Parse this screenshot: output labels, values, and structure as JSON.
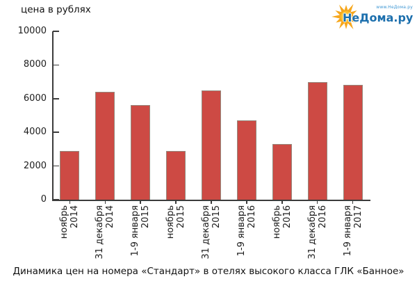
{
  "logo": {
    "wordmark": "НеДома.ру",
    "url_text": "www.НеДома.ру",
    "sun_color": "#f6a71d",
    "sun_core_color": "#fdc02f",
    "text_color": "#1c6fad"
  },
  "chart_data": {
    "type": "bar",
    "title": "Динамика цен на номера «Стандарт» в отелях высокого класса ГЛК «Банное»",
    "ylabel": "цена в рублях",
    "xlabel": "",
    "categories": [
      "ноябрь 2014",
      "31 декабря 2014",
      "1-9 января 2015",
      "ноябрь 2015",
      "31 декабря 2015",
      "1-9 января 2016",
      "ноябрь 2016",
      "31 декабря 2016",
      "1-9 января 2017"
    ],
    "category_lines": [
      [
        "ноябрь",
        "2014"
      ],
      [
        "31 декабря",
        "2014"
      ],
      [
        "1-9 января",
        "2015"
      ],
      [
        "ноябрь",
        "2015"
      ],
      [
        "31 декабря",
        "2015"
      ],
      [
        "1-9 января",
        "2016"
      ],
      [
        "ноябрь",
        "2016"
      ],
      [
        "31 декабря",
        "2016"
      ],
      [
        "1-9 января",
        "2017"
      ]
    ],
    "values": [
      2900,
      6400,
      5600,
      2900,
      6500,
      4700,
      3300,
      7000,
      6800
    ],
    "ylim": [
      0,
      10000
    ],
    "yticks": [
      0,
      2000,
      4000,
      6000,
      8000,
      10000
    ],
    "grid": false,
    "legend": null,
    "bar_color": "#cd4a44",
    "bar_border_color": "#95897d",
    "axis_color": "#3b3b3b"
  }
}
